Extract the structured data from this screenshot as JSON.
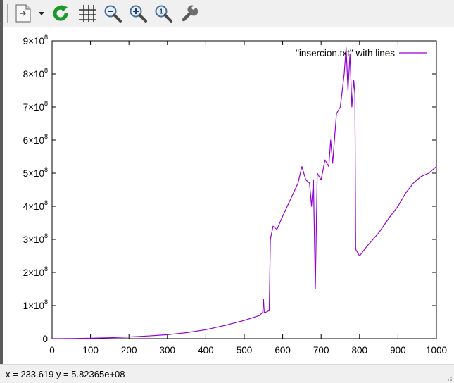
{
  "toolbar": {
    "buttons": [
      {
        "name": "copy-export-button",
        "icon": "document-export-icon"
      },
      {
        "name": "replot-button",
        "icon": "refresh-icon"
      },
      {
        "name": "grid-button",
        "icon": "grid-icon"
      },
      {
        "name": "zoom-out-button",
        "icon": "zoom-out-icon"
      },
      {
        "name": "zoom-in-button",
        "icon": "zoom-in-icon"
      },
      {
        "name": "zoom-reset-button",
        "icon": "zoom-reset-icon"
      },
      {
        "name": "settings-button",
        "icon": "wrench-icon"
      }
    ]
  },
  "status": {
    "coords": "x = 233.619 y = 5.82365e+08"
  },
  "colors": {
    "series": "#9400d3",
    "axis": "#000000",
    "refresh": "#1a9a2a"
  },
  "chart_data": {
    "type": "line",
    "xlim": [
      0,
      1000
    ],
    "ylim": [
      0,
      900000000
    ],
    "x_ticks": [
      "0",
      "100",
      "200",
      "300",
      "400",
      "500",
      "600",
      "700",
      "800",
      "900",
      "1000"
    ],
    "y_ticks": [
      {
        "mantissa": "0",
        "exp": ""
      },
      {
        "mantissa": "1×10",
        "exp": "8"
      },
      {
        "mantissa": "2×10",
        "exp": "8"
      },
      {
        "mantissa": "3×10",
        "exp": "8"
      },
      {
        "mantissa": "4×10",
        "exp": "8"
      },
      {
        "mantissa": "5×10",
        "exp": "8"
      },
      {
        "mantissa": "6×10",
        "exp": "8"
      },
      {
        "mantissa": "7×10",
        "exp": "8"
      },
      {
        "mantissa": "8×10",
        "exp": "8"
      },
      {
        "mantissa": "9×10",
        "exp": "8"
      }
    ],
    "legend_position": "top-right",
    "series": [
      {
        "name": "\"insercion.txt\" with lines",
        "points": [
          [
            0,
            0
          ],
          [
            50,
            300000
          ],
          [
            100,
            1200000
          ],
          [
            150,
            2800000
          ],
          [
            200,
            5000000
          ],
          [
            250,
            8000000
          ],
          [
            300,
            12000000
          ],
          [
            350,
            18000000
          ],
          [
            400,
            27000000
          ],
          [
            450,
            40000000
          ],
          [
            500,
            55000000
          ],
          [
            540,
            70000000
          ],
          [
            548,
            80000000
          ],
          [
            550,
            120000000
          ],
          [
            552,
            78000000
          ],
          [
            560,
            82000000
          ],
          [
            565,
            85000000
          ],
          [
            568,
            300000000
          ],
          [
            575,
            340000000
          ],
          [
            585,
            330000000
          ],
          [
            600,
            370000000
          ],
          [
            620,
            420000000
          ],
          [
            640,
            470000000
          ],
          [
            650,
            520000000
          ],
          [
            660,
            480000000
          ],
          [
            670,
            470000000
          ],
          [
            675,
            400000000
          ],
          [
            680,
            480000000
          ],
          [
            685,
            150000000
          ],
          [
            690,
            500000000
          ],
          [
            700,
            480000000
          ],
          [
            710,
            540000000
          ],
          [
            720,
            520000000
          ],
          [
            725,
            600000000
          ],
          [
            730,
            530000000
          ],
          [
            740,
            680000000
          ],
          [
            750,
            700000000
          ],
          [
            760,
            800000000
          ],
          [
            765,
            880000000
          ],
          [
            770,
            750000000
          ],
          [
            775,
            860000000
          ],
          [
            780,
            700000000
          ],
          [
            785,
            780000000
          ],
          [
            788,
            740000000
          ],
          [
            790,
            270000000
          ],
          [
            795,
            260000000
          ],
          [
            800,
            250000000
          ],
          [
            820,
            280000000
          ],
          [
            850,
            320000000
          ],
          [
            880,
            370000000
          ],
          [
            900,
            400000000
          ],
          [
            920,
            440000000
          ],
          [
            940,
            470000000
          ],
          [
            960,
            490000000
          ],
          [
            980,
            500000000
          ],
          [
            1000,
            520000000
          ]
        ]
      }
    ]
  }
}
